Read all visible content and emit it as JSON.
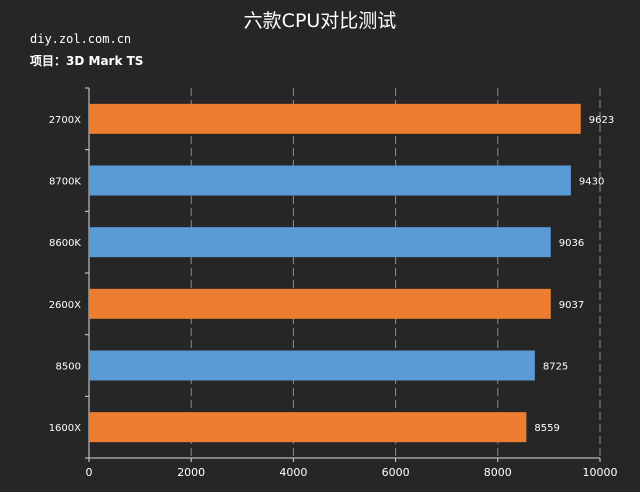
{
  "header": {
    "title": "六款CPU对比测试",
    "source": "diy.zol.com.cn",
    "subject_label": "项目：",
    "subject_value": "3D Mark TS"
  },
  "chart_data": {
    "type": "bar",
    "orientation": "horizontal",
    "categories": [
      "2700X",
      "8700K",
      "8600K",
      "2600X",
      "8500",
      "1600X"
    ],
    "values": [
      9623,
      9430,
      9036,
      9037,
      8725,
      8559
    ],
    "bar_colors": [
      "#ED7D31",
      "#5B9BD5",
      "#5B9BD5",
      "#ED7D31",
      "#5B9BD5",
      "#ED7D31"
    ],
    "xlim": [
      0,
      10000
    ],
    "xticks": [
      0,
      2000,
      4000,
      6000,
      8000,
      10000
    ],
    "grid": "vertical-dashed",
    "data_labels": true
  }
}
